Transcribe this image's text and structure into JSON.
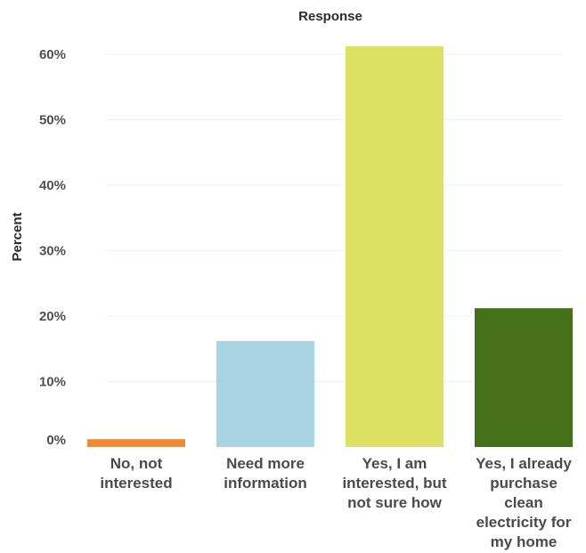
{
  "chart_data": {
    "type": "bar",
    "title": "Response",
    "ylabel": "Percent",
    "xlabel": "",
    "categories": [
      "No, not interested",
      "Need more information",
      "Yes, I am interested, but not sure how",
      "Yes, I already purchase clean electricity for my home"
    ],
    "category_label_lines": [
      [
        "No, not",
        "interested"
      ],
      [
        "Need more",
        "information"
      ],
      [
        "Yes, I am",
        "interested, but",
        "not sure how"
      ],
      [
        "Yes, I already",
        "purchase",
        "clean",
        "electricity for",
        "my home"
      ]
    ],
    "values": [
      1.2,
      16.2,
      61.2,
      21.2
    ],
    "colors": [
      "#F58A2A",
      "#A8D3E2",
      "#DBE263",
      "#466F1A"
    ],
    "ylim": [
      0,
      61.2
    ],
    "yticks": [
      0,
      10,
      20,
      30,
      40,
      50,
      60
    ],
    "ytick_labels": [
      "0%",
      "10%",
      "20%",
      "30%",
      "40%",
      "50%",
      "60%"
    ],
    "grid": true,
    "legend": "none"
  }
}
